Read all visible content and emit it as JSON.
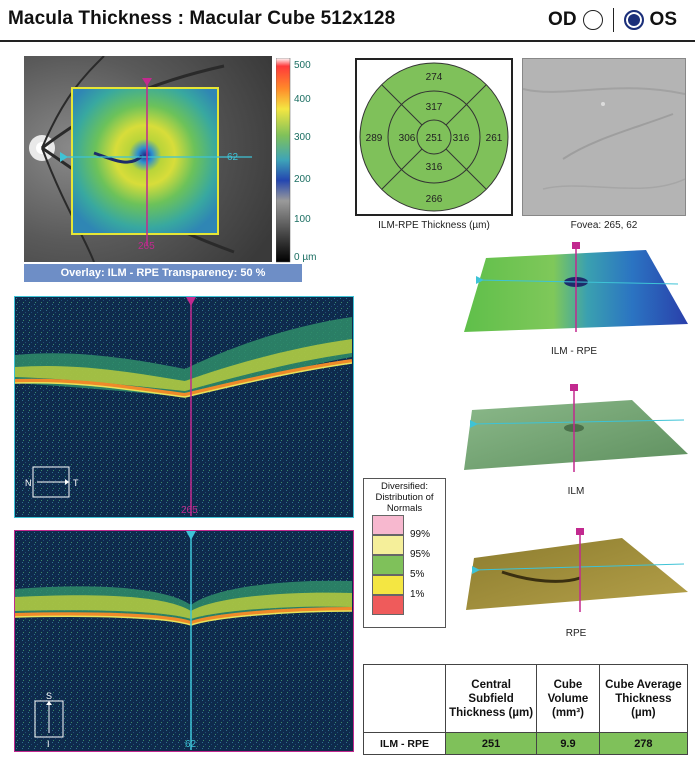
{
  "header": {
    "title": "Macula Thickness : Macular Cube 512x128",
    "od_label": "OD",
    "os_label": "OS"
  },
  "colorbar": {
    "ticks": [
      "500",
      "400",
      "300",
      "200",
      "100",
      "0 µm"
    ]
  },
  "fundus": {
    "marker_h_value": "62",
    "marker_v_value": "265",
    "overlay_caption": "Overlay: ILM - RPE  Transparency: 50 %"
  },
  "etdrs": {
    "center": "251",
    "inner_superior": "317",
    "inner_nasal": "306",
    "inner_temporal": "316",
    "inner_inferior": "316",
    "outer_superior": "274",
    "outer_nasal": "289",
    "outer_temporal": "261",
    "outer_inferior": "266",
    "caption": "ILM-RPE Thickness (µm)"
  },
  "fovea_image": {
    "caption": "Fovea: 265, 62"
  },
  "bscan_horizontal": {
    "slice_value": "265",
    "orient_left": "N",
    "orient_right": "T"
  },
  "bscan_vertical": {
    "slice_value": "62",
    "orient_top": "S",
    "orient_bottom": "I"
  },
  "surfaces": {
    "ilm_rpe_caption": "ILM - RPE",
    "ilm_caption": "ILM",
    "rpe_caption": "RPE"
  },
  "normals_legend": {
    "title": "Diversified: Distribution of Normals",
    "levels": [
      "99%",
      "95%",
      "5%",
      "1%"
    ],
    "colors": [
      "#f7b8cf",
      "#f5ef9a",
      "#7fc15a",
      "#f4e642",
      "#ef5b5b"
    ]
  },
  "metrics_table": {
    "headers": [
      "Central Subfield Thickness (µm)",
      "Cube Volume (mm³)",
      "Cube Average Thickness (µm)"
    ],
    "row_label": "ILM - RPE",
    "values": [
      "251",
      "9.9",
      "278"
    ],
    "cell_color": "#7fc15a"
  },
  "colors": {
    "magenta": "#c2298f",
    "cyan": "#3ec3d6",
    "etdrs_green": "#7fc15a",
    "overlay_bar": "#6e8ec6",
    "frame_yellow": "#e6e635"
  }
}
